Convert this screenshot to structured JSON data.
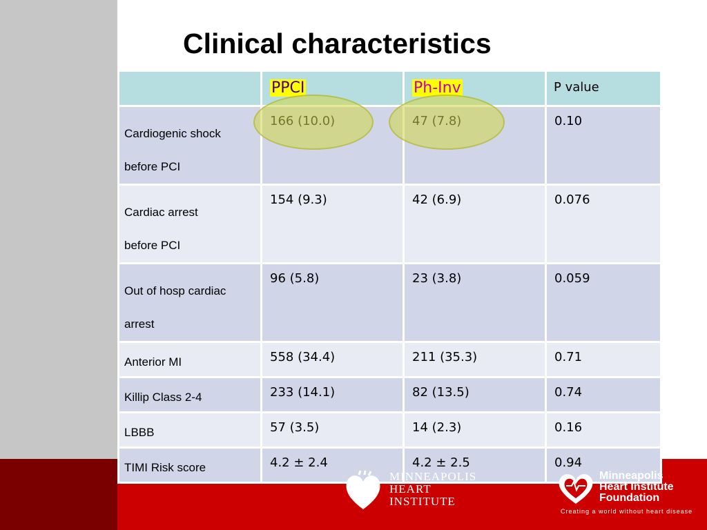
{
  "slide": {
    "title": "Clinical characteristics"
  },
  "table": {
    "headers": [
      "",
      "PPCI",
      "Ph-Inv",
      "P value"
    ],
    "rows": [
      {
        "label_line1": "Cardiogenic shock",
        "label_line2": "before PCI",
        "ppci": "166 (10.0)",
        "phinv": "47 (7.8)",
        "p": "0.10"
      },
      {
        "label_line1": "Cardiac arrest",
        "label_line2": "before PCI",
        "ppci": "154 (9.3)",
        "phinv": "42 (6.9)",
        "p": "0.076"
      },
      {
        "label_line1": "Out of hosp cardiac",
        "label_line2": "arrest",
        "ppci": "96 (5.8)",
        "phinv": "23 (3.8)",
        "p": "0.059"
      },
      {
        "label_line1": "Anterior MI",
        "label_line2": "",
        "ppci": "558 (34.4)",
        "phinv": "211 (35.3)",
        "p": "0.71"
      },
      {
        "label_line1": "Killip Class 2-4",
        "label_line2": "",
        "ppci": "233 (14.1)",
        "phinv": "82 (13.5)",
        "p": "0.74"
      },
      {
        "label_line1": "LBBB",
        "label_line2": "",
        "ppci": "57 (3.5)",
        "phinv": "14 (2.3)",
        "p": "0.16"
      },
      {
        "label_line1": "TIMI Risk score",
        "label_line2": "",
        "ppci": "4.2 ± 2.4",
        "phinv": "4.2 ± 2.5",
        "p": "0.94"
      }
    ]
  },
  "footer": {
    "logo1_lines": [
      "MINNEAPOLIS",
      "HEART",
      "INSTITUTE"
    ],
    "logo2_lines": [
      "Minneapolis",
      "Heart Institute",
      "Foundation"
    ],
    "logo2_tagline": "Creating a world without heart disease"
  },
  "colors": {
    "header_row": "#b6dde0",
    "row_dark": "#d0d5e8",
    "row_light": "#e9ebf4",
    "footer_red": "#cc0000",
    "highlight": "#ffff00"
  }
}
